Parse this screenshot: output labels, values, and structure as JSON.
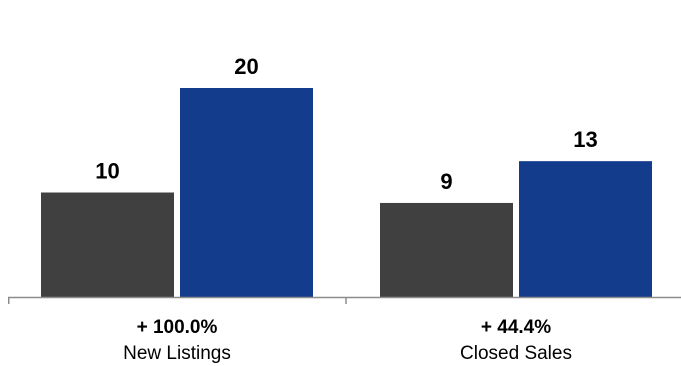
{
  "chart_data": {
    "type": "bar",
    "categories": [
      "New Listings",
      "Closed Sales"
    ],
    "changes": [
      "+ 100.0%",
      "+ 44.4%"
    ],
    "series": [
      {
        "values": [
          10,
          9
        ],
        "color": "#404040"
      },
      {
        "values": [
          20,
          13
        ],
        "color": "#143c8c"
      }
    ],
    "ylim": [
      0,
      20
    ],
    "grid": false,
    "legend": "none",
    "axis_color": "#8c8c8c"
  }
}
